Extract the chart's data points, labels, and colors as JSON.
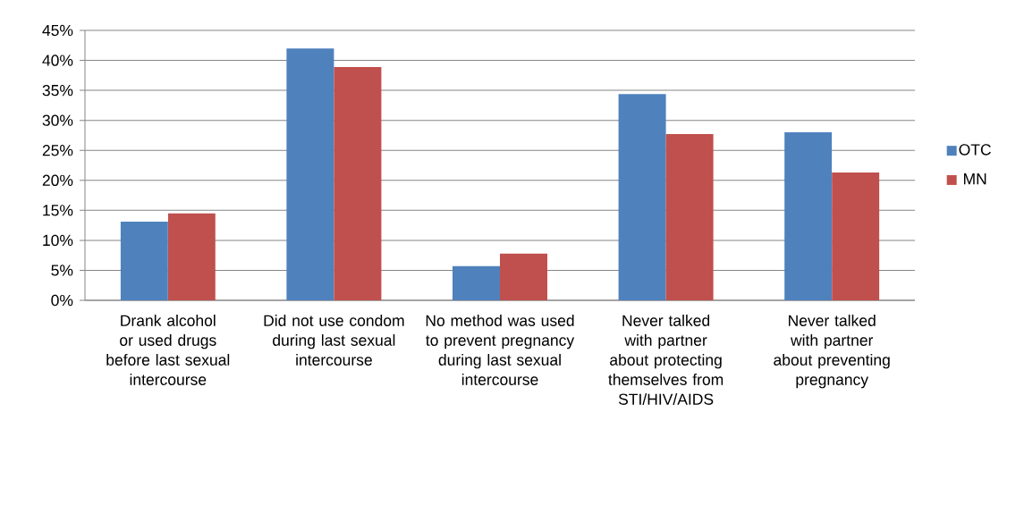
{
  "chart_data": {
    "type": "bar",
    "categories": [
      "Drank alcohol or used drugs before last sexual intercourse",
      "Did not use condom during last sexual intercourse",
      "No method was used to prevent pregnancy during last sexual intercourse",
      "Never talked with partner about protecting themselves from STI/HIV/AIDS",
      "Never talked with partner about preventing pregnancy"
    ],
    "series": [
      {
        "name": "OTC",
        "color": "#4f81bd",
        "values": [
          13.1,
          42.0,
          5.7,
          34.4,
          28.0
        ]
      },
      {
        "name": "MN",
        "color": "#c0504d",
        "values": [
          14.5,
          38.9,
          7.8,
          27.7,
          21.3
        ]
      }
    ],
    "ylim": [
      0,
      45
    ],
    "yticks": [
      {
        "value": 0,
        "label": "0%"
      },
      {
        "value": 5,
        "label": "5%"
      },
      {
        "value": 10,
        "label": "10%"
      },
      {
        "value": 15,
        "label": "15%"
      },
      {
        "value": 20,
        "label": "20%"
      },
      {
        "value": 25,
        "label": "25%"
      },
      {
        "value": 30,
        "label": "30%"
      },
      {
        "value": 35,
        "label": "35%"
      },
      {
        "value": 40,
        "label": "40%"
      },
      {
        "value": 45,
        "label": "45%"
      }
    ],
    "grid": "y",
    "legend": "right"
  }
}
